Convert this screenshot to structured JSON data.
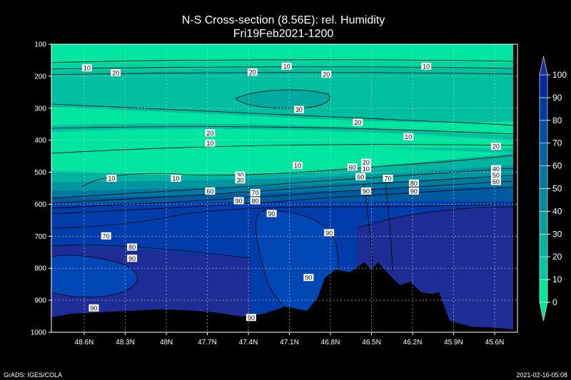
{
  "chart_data": {
    "type": "heatmap",
    "title": "N-S Cross-section (8.56E): rel. Humidity",
    "subtitle": "Fri19Feb2021-1200",
    "y_ticks": [
      "100",
      "200",
      "300",
      "400",
      "500",
      "600",
      "700",
      "800",
      "900",
      "1000"
    ],
    "ylim": [
      100,
      1000
    ],
    "x_ticks": [
      "48.6N",
      "48.3N",
      "48N",
      "47.7N",
      "47.4N",
      "47.1N",
      "46.8N",
      "46.5N",
      "46.2N",
      "45.9N",
      "45.6N"
    ],
    "grid": true,
    "colorbar": {
      "position": "right",
      "levels": [
        "0",
        "10",
        "20",
        "30",
        "40",
        "50",
        "60",
        "70",
        "80",
        "90",
        "100"
      ],
      "colors": [
        "#00e6a0",
        "#00c8a0",
        "#00b4a0",
        "#00a0a0",
        "#008ca0",
        "#0078a0",
        "#0064a0",
        "#0050a0",
        "#003ca0",
        "#0028a0"
      ]
    },
    "contour_labels": [
      {
        "text": "10",
        "x": 48.58,
        "p": 175
      },
      {
        "text": "20",
        "x": 48.37,
        "p": 190
      },
      {
        "text": "10",
        "x": 47.93,
        "p": 520
      },
      {
        "text": "10",
        "x": 48.4,
        "p": 520
      },
      {
        "text": "20",
        "x": 47.37,
        "p": 188
      },
      {
        "text": "10",
        "x": 47.12,
        "p": 170
      },
      {
        "text": "20",
        "x": 46.83,
        "p": 195
      },
      {
        "text": "10",
        "x": 46.1,
        "p": 170
      },
      {
        "text": "30",
        "x": 47.03,
        "p": 305
      },
      {
        "text": "20",
        "x": 46.6,
        "p": 345
      },
      {
        "text": "20",
        "x": 47.68,
        "p": 378
      },
      {
        "text": "10",
        "x": 47.68,
        "p": 410
      },
      {
        "text": "10",
        "x": 46.23,
        "p": 390
      },
      {
        "text": "20",
        "x": 45.59,
        "p": 420
      },
      {
        "text": "10",
        "x": 47.04,
        "p": 480
      },
      {
        "text": "30",
        "x": 47.46,
        "p": 510
      },
      {
        "text": "30",
        "x": 47.46,
        "p": 525
      },
      {
        "text": "60",
        "x": 47.68,
        "p": 560
      },
      {
        "text": "60",
        "x": 46.58,
        "p": 515
      },
      {
        "text": "20",
        "x": 46.54,
        "p": 470
      },
      {
        "text": "10",
        "x": 46.54,
        "p": 490
      },
      {
        "text": "60",
        "x": 46.64,
        "p": 485
      },
      {
        "text": "40",
        "x": 45.59,
        "p": 490
      },
      {
        "text": "50",
        "x": 45.59,
        "p": 510
      },
      {
        "text": "60",
        "x": 45.59,
        "p": 530
      },
      {
        "text": "70",
        "x": 47.35,
        "p": 565
      },
      {
        "text": "80",
        "x": 47.35,
        "p": 590
      },
      {
        "text": "90",
        "x": 47.47,
        "p": 590
      },
      {
        "text": "90",
        "x": 46.54,
        "p": 560
      },
      {
        "text": "70",
        "x": 46.38,
        "p": 520
      },
      {
        "text": "80",
        "x": 46.19,
        "p": 535
      },
      {
        "text": "90",
        "x": 46.19,
        "p": 560
      },
      {
        "text": "90",
        "x": 47.23,
        "p": 630
      },
      {
        "text": "90",
        "x": 46.81,
        "p": 690
      },
      {
        "text": "70",
        "x": 48.44,
        "p": 700
      },
      {
        "text": "80",
        "x": 48.25,
        "p": 735
      },
      {
        "text": "90",
        "x": 48.25,
        "p": 770
      },
      {
        "text": "90",
        "x": 46.96,
        "p": 830
      },
      {
        "text": "90",
        "x": 48.53,
        "p": 925
      },
      {
        "text": "90",
        "x": 47.38,
        "p": 955
      }
    ]
  },
  "footer": {
    "left": "GrADS: IGES/COLA",
    "right": "2021-02-16-05:08"
  }
}
